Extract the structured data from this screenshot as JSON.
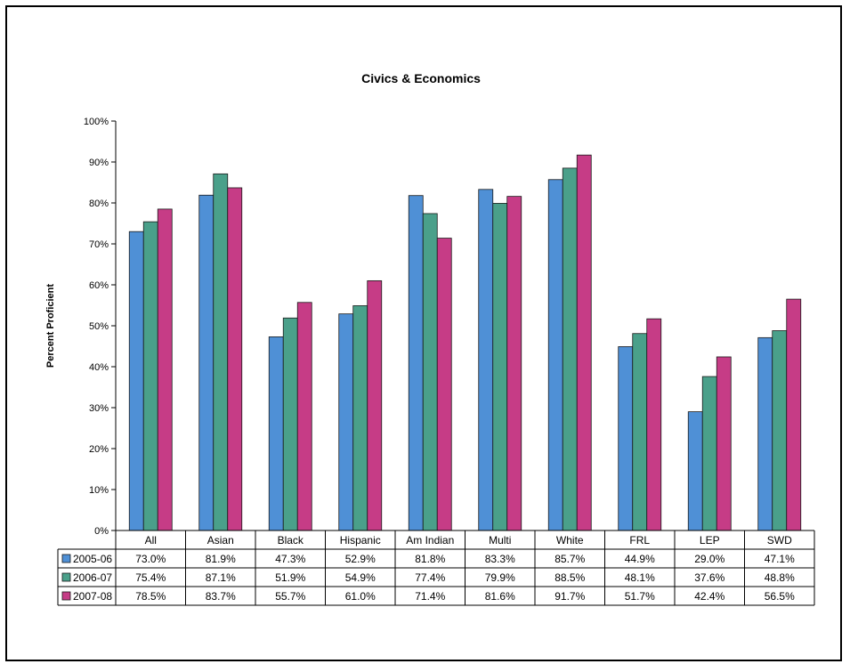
{
  "chart_data": {
    "type": "bar",
    "title": "Civics & Economics",
    "ylabel": "Percent Proficient",
    "ylim": [
      0,
      100
    ],
    "yticks": [
      "0%",
      "10%",
      "20%",
      "30%",
      "40%",
      "50%",
      "60%",
      "70%",
      "80%",
      "90%",
      "100%"
    ],
    "grid": false,
    "legend": "table-rows",
    "categories": [
      "All",
      "Asian",
      "Black",
      "Hispanic",
      "Am Indian",
      "Multi",
      "White",
      "FRL",
      "LEP",
      "SWD"
    ],
    "series": [
      {
        "name": "2005-06",
        "color": "#4f90d6",
        "values": [
          73.0,
          81.9,
          47.3,
          52.9,
          81.8,
          83.3,
          85.7,
          44.9,
          29.0,
          47.1
        ],
        "labels": [
          "73.0%",
          "81.9%",
          "47.3%",
          "52.9%",
          "81.8%",
          "83.3%",
          "85.7%",
          "44.9%",
          "29.0%",
          "47.1%"
        ]
      },
      {
        "name": "2006-07",
        "color": "#4aa08a",
        "values": [
          75.4,
          87.1,
          51.9,
          54.9,
          77.4,
          79.9,
          88.5,
          48.1,
          37.6,
          48.8
        ],
        "labels": [
          "75.4%",
          "87.1%",
          "51.9%",
          "54.9%",
          "77.4%",
          "79.9%",
          "88.5%",
          "48.1%",
          "37.6%",
          "48.8%"
        ]
      },
      {
        "name": "2007-08",
        "color": "#c63c86",
        "values": [
          78.5,
          83.7,
          55.7,
          61.0,
          71.4,
          81.6,
          91.7,
          51.7,
          42.4,
          56.5
        ],
        "labels": [
          "78.5%",
          "83.7%",
          "55.7%",
          "61.0%",
          "71.4%",
          "81.6%",
          "91.7%",
          "51.7%",
          "42.4%",
          "56.5%"
        ]
      }
    ]
  }
}
